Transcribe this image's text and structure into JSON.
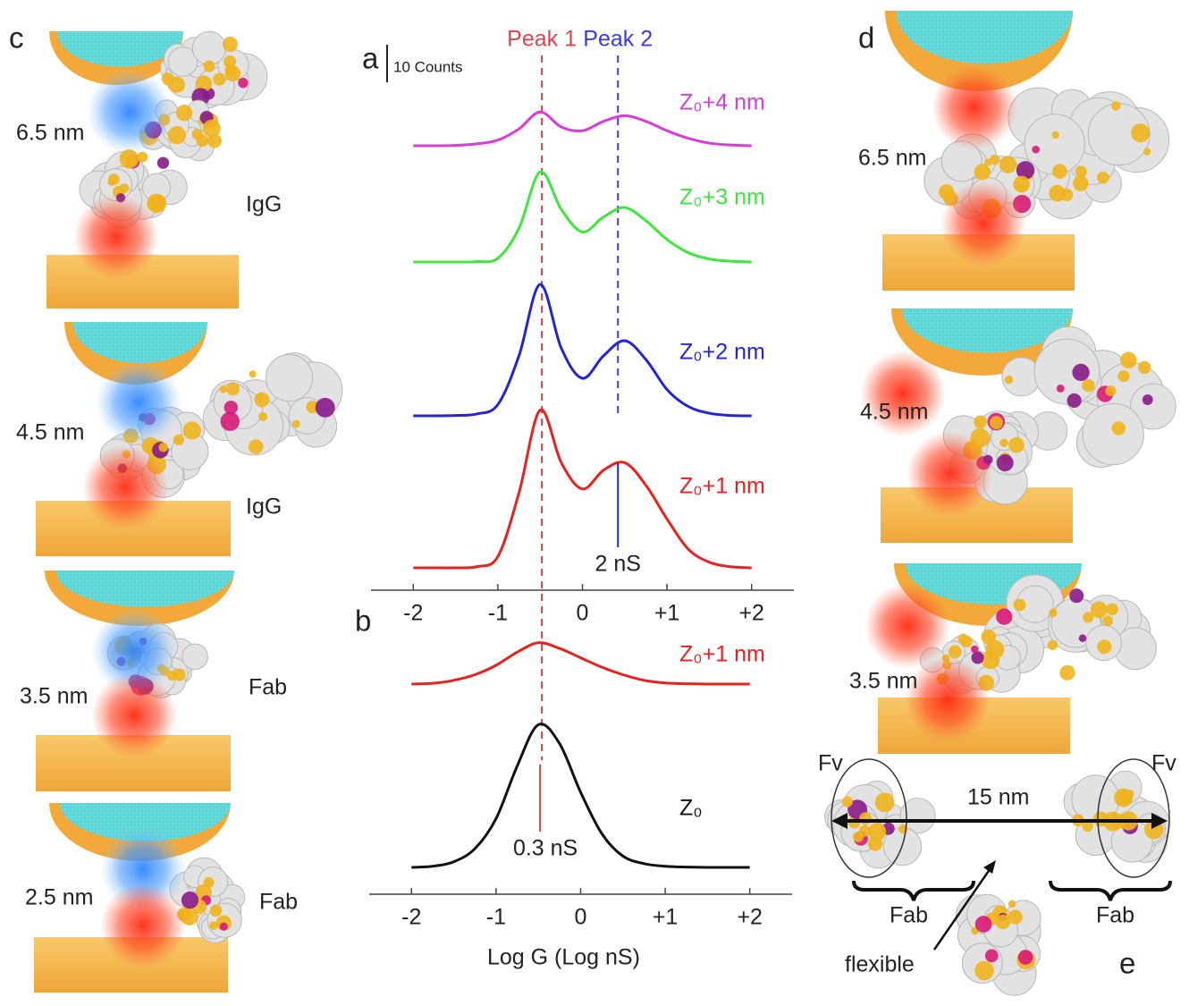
{
  "panels": {
    "c": {
      "label": "c",
      "items": [
        {
          "distance": "6.5 nm",
          "molecule": "IgG"
        },
        {
          "distance": "4.5 nm",
          "molecule": "IgG"
        },
        {
          "distance": "3.5 nm",
          "molecule": "Fab"
        },
        {
          "distance": "2.5 nm",
          "molecule": "Fab"
        }
      ]
    },
    "d": {
      "label": "d",
      "items": [
        {
          "distance": "6.5 nm"
        },
        {
          "distance": "4.5 nm"
        },
        {
          "distance": "3.5 nm"
        }
      ]
    },
    "e": {
      "label": "e",
      "fv_left": "Fv",
      "fv_right": "Fv",
      "length": "15 nm",
      "fab_left": "Fab",
      "fab_right": "Fab",
      "hinge": "flexible"
    }
  },
  "chart_data": [
    {
      "type": "line",
      "panel_label": "a",
      "scale_bar": {
        "value": 10,
        "label": "10 Counts"
      },
      "x": [
        -2,
        -1.75,
        -1.5,
        -1.25,
        -1,
        -0.75,
        -0.5,
        -0.25,
        0,
        0.25,
        0.5,
        0.75,
        1,
        1.25,
        1.5,
        1.75,
        2
      ],
      "xlim": [
        -2.5,
        2.5
      ],
      "xticks": [
        -2,
        -1,
        0,
        {
          "value": 1,
          "label": "+1"
        },
        {
          "value": 2,
          "label": "+2"
        }
      ],
      "series": [
        {
          "name": "Z₀+4 nm",
          "color": "#d93cd9",
          "values": [
            0,
            0,
            0.1,
            0.5,
            1.5,
            4.5,
            9,
            5,
            4,
            6.5,
            8,
            6.5,
            4,
            2,
            0.7,
            0.2,
            0
          ]
        },
        {
          "name": "Z₀+3 nm",
          "color": "#3ee63e",
          "values": [
            0,
            0,
            0,
            0.1,
            1,
            9,
            24,
            14,
            8,
            12,
            14.5,
            11,
            6,
            2.5,
            0.8,
            0.2,
            0
          ]
        },
        {
          "name": "Z₀+2 nm",
          "color": "#2323d8",
          "values": [
            0,
            0,
            0.1,
            0.5,
            3,
            16,
            35,
            18,
            10,
            16,
            20,
            15,
            7,
            2.5,
            0.7,
            0.1,
            0
          ]
        },
        {
          "name": "Z₀+1 nm",
          "color": "#e8201e",
          "values": [
            0,
            0,
            0,
            0.3,
            3,
            20,
            42,
            28,
            21,
            26,
            28,
            22,
            13,
            5,
            1.5,
            0.3,
            0
          ]
        }
      ],
      "peak_lines": [
        {
          "text": "Peak 1",
          "x": -0.48,
          "color": "#e8404a"
        },
        {
          "text": "Peak 2",
          "x": 0.42,
          "color": "#3a3ae0"
        }
      ],
      "marker": {
        "text": "2 nS",
        "x": 0.42,
        "color": "#2323d8"
      }
    },
    {
      "type": "line",
      "panel_label": "b",
      "x": [
        -2,
        -1.75,
        -1.5,
        -1.25,
        -1,
        -0.75,
        -0.5,
        -0.25,
        0,
        0.25,
        0.5,
        0.75,
        1,
        1.25,
        1.5,
        1.75,
        2
      ],
      "xlim": [
        -2.5,
        2.5
      ],
      "xticks": [
        -2,
        -1,
        0,
        {
          "value": 1,
          "label": "+1"
        },
        {
          "value": 2,
          "label": "+2"
        }
      ],
      "xlabel": "Log G (Log nS)",
      "series": [
        {
          "name": "Z₀+1 nm",
          "color": "#e8201e",
          "values": [
            0,
            0.2,
            1,
            2.5,
            5,
            8.5,
            11,
            9.5,
            7,
            4.5,
            2.5,
            1,
            0.3,
            0.1,
            0,
            0,
            0
          ]
        },
        {
          "name": "Z₀",
          "color": "#111111",
          "values": [
            0,
            0.3,
            1.5,
            5,
            13,
            27,
            38,
            33,
            20,
            9,
            3,
            1,
            0.3,
            0.1,
            0,
            0,
            0
          ]
        }
      ],
      "marker": {
        "text": "0.3 nS",
        "x": -0.48,
        "color": "#e8404a"
      }
    }
  ]
}
